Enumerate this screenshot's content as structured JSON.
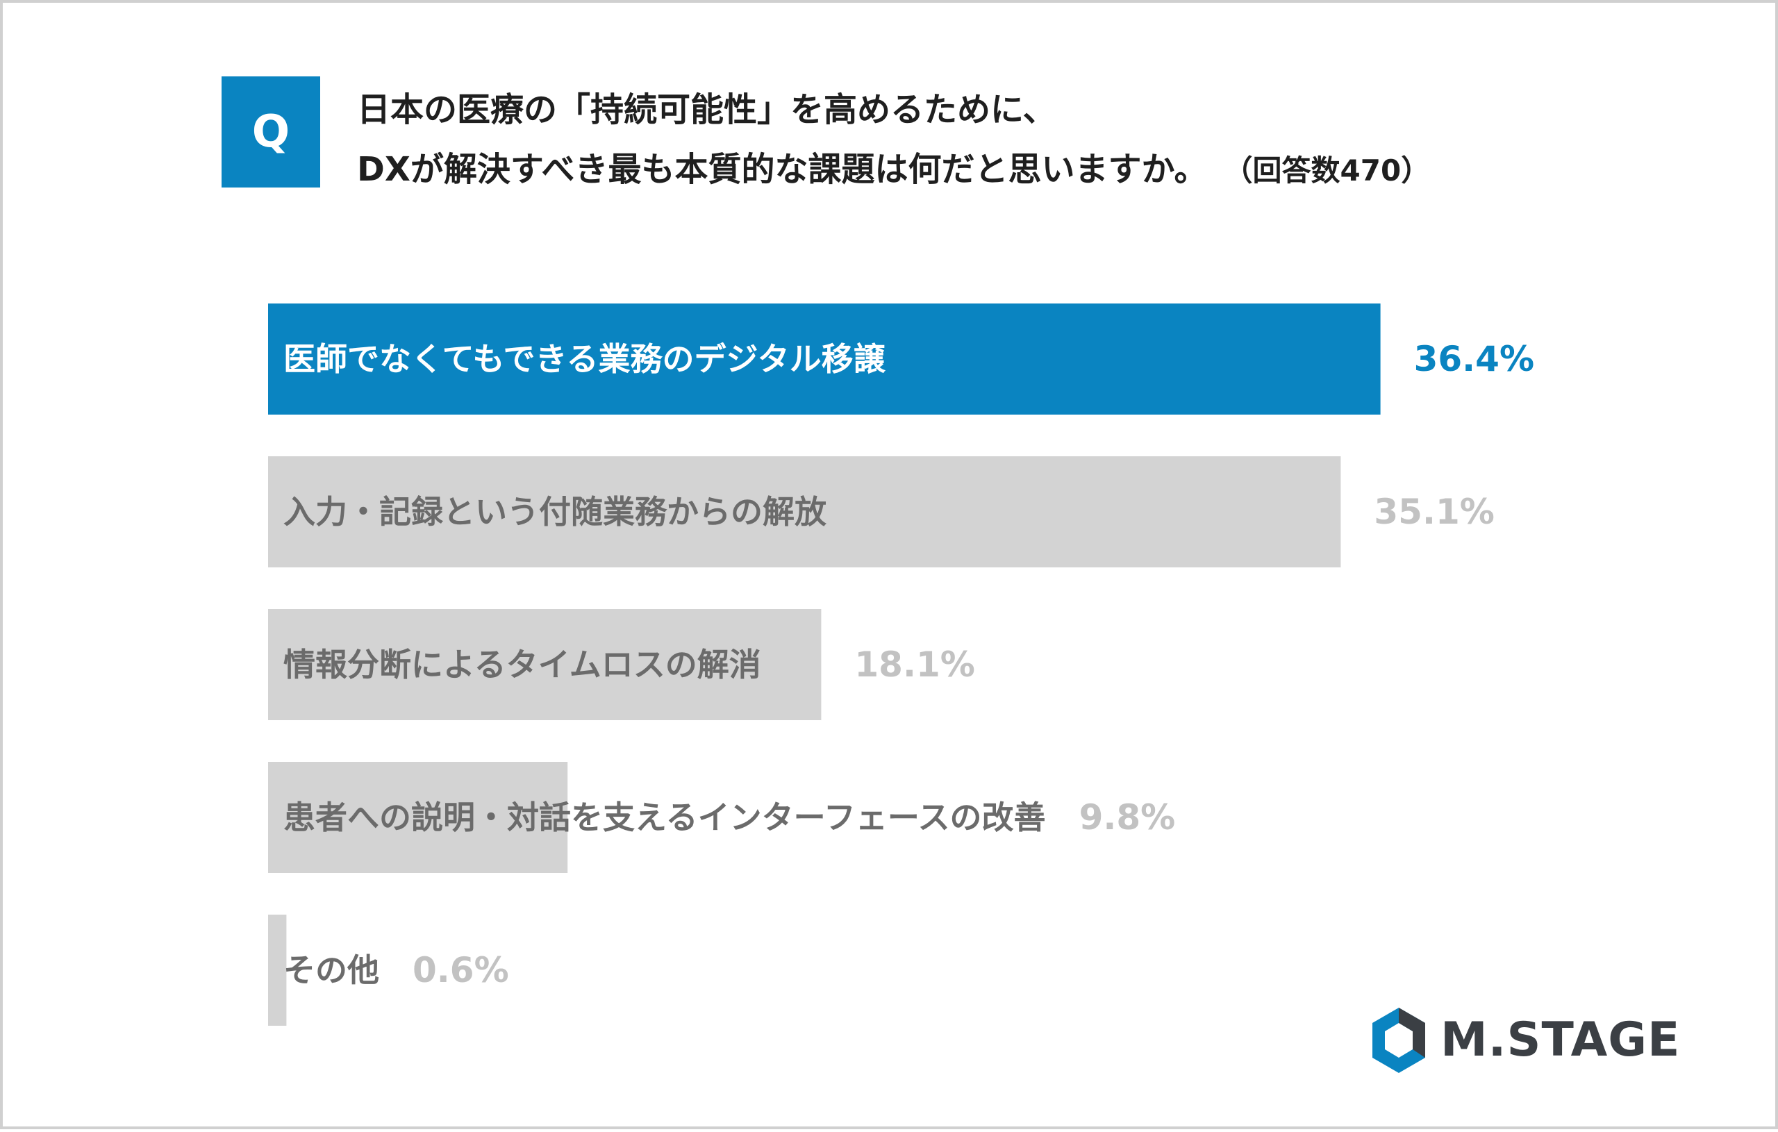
{
  "question": {
    "badge": "Q",
    "line1": "日本の医療の「持続可能性」を高めるために、",
    "line2": "DXが解決すべき最も本質的な課題は何だと思いますか。",
    "response_count": "（回答数470）"
  },
  "colors": {
    "accent": "#0a84c1",
    "bar_gray": "#d3d3d3",
    "label_on_accent": "#ffffff",
    "label_gray": "#6b6b6b",
    "value_gray": "#c2c2c2"
  },
  "chart_data": {
    "type": "bar",
    "orientation": "horizontal",
    "categories": [
      "医師でなくてもできる業務のデジタル移譲",
      "入力・記録という付随業務からの解放",
      "情報分断によるタイムロスの解消",
      "患者への説明・対話を支えるインターフェースの改善",
      "その他"
    ],
    "values": [
      36.4,
      35.1,
      18.1,
      9.8,
      0.6
    ],
    "value_labels": [
      "36.4%",
      "35.1%",
      "18.1%",
      "9.8%",
      "0.6%"
    ],
    "highlight_index": 0,
    "xlim": [
      0,
      40
    ]
  },
  "logo": {
    "text": "M.STAGE",
    "icon": "mstage-hexagon-logo-icon"
  }
}
